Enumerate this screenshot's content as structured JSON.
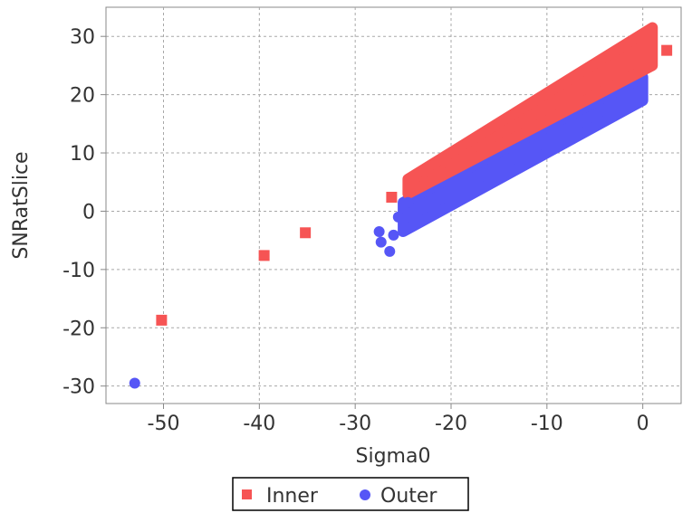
{
  "chart_data": {
    "type": "scatter",
    "title": "",
    "xlabel": "Sigma0",
    "ylabel": "SNRatSlice",
    "xlim": [
      -56,
      4
    ],
    "ylim": [
      -33,
      35
    ],
    "x_ticks": [
      -50,
      -40,
      -30,
      -20,
      -10,
      0
    ],
    "y_ticks": [
      -30,
      -20,
      -10,
      0,
      10,
      20,
      30
    ],
    "x_tick_labels": [
      "-50",
      "-40",
      "-30",
      "-20",
      "-10",
      "0"
    ],
    "y_tick_labels": [
      "-30",
      "-20",
      "-10",
      "0",
      "10",
      "20",
      "30"
    ],
    "grid": true,
    "legend_position": "bottom-center",
    "series": [
      {
        "name": "Inner",
        "color": "#f65454",
        "marker": "square",
        "outliers": [
          {
            "x": -50.2,
            "y": -18.7
          },
          {
            "x": -39.5,
            "y": -7.6
          },
          {
            "x": -35.2,
            "y": -3.7
          },
          {
            "x": -26.2,
            "y": 2.4
          },
          {
            "x": 2.5,
            "y": 27.6
          }
        ],
        "dense_band": {
          "x_from": -24.5,
          "x_to": 1.0,
          "y_low_at_start": 3.0,
          "y_low_at_end": 25.0,
          "y_high_at_start": 5.5,
          "y_high_at_end": 31.5
        }
      },
      {
        "name": "Outer",
        "color": "#5656f6",
        "marker": "circle",
        "outliers": [
          {
            "x": -53.0,
            "y": -29.5
          },
          {
            "x": -27.5,
            "y": -3.5
          },
          {
            "x": -27.3,
            "y": -5.3
          },
          {
            "x": -26.4,
            "y": -6.9
          },
          {
            "x": -26.0,
            "y": -4.1
          },
          {
            "x": -25.5,
            "y": -1.0
          },
          {
            "x": -24.5,
            "y": 1.5
          }
        ],
        "dense_band": {
          "x_from": -25.0,
          "x_to": 0.0,
          "y_low_at_start": -3.5,
          "y_low_at_end": 19.0,
          "y_high_at_start": 1.5,
          "y_high_at_end": 23.0
        }
      }
    ]
  }
}
